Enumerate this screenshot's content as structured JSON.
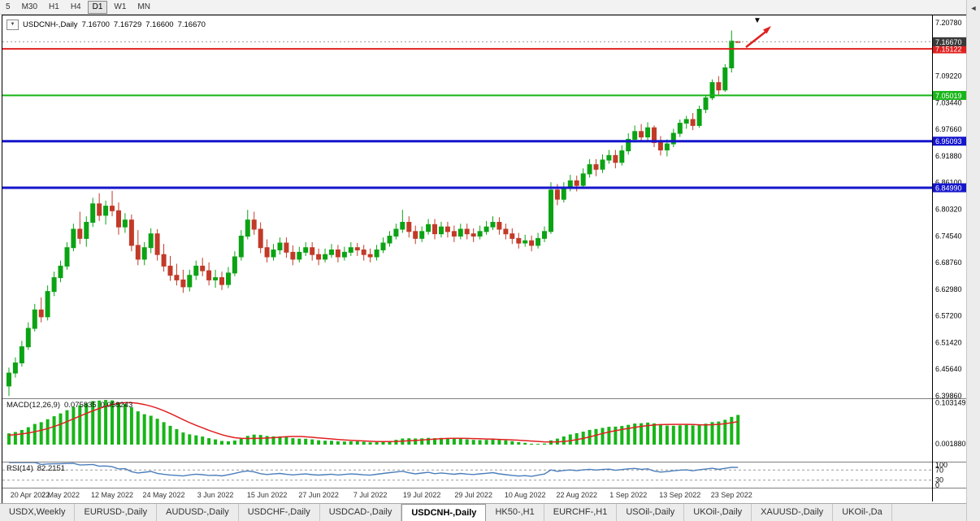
{
  "toolbar": {
    "timeframes": [
      {
        "label": "5",
        "active": false
      },
      {
        "label": "M30",
        "active": false
      },
      {
        "label": "H1",
        "active": false
      },
      {
        "label": "H4",
        "active": false
      },
      {
        "label": "D1",
        "active": true
      },
      {
        "label": "W1",
        "active": false
      },
      {
        "label": "MN",
        "active": false
      }
    ]
  },
  "chart": {
    "header": {
      "dropdown_icon": "▼",
      "symbol": "USDCNH-,Daily",
      "open": "7.16700",
      "high": "7.16729",
      "low": "7.16600",
      "close": "7.16670"
    },
    "colors": {
      "up": "#0ba314",
      "down": "#c23a28",
      "bid_line": "#9a9a9a",
      "background": "#ffffff",
      "border": "#000000"
    },
    "price_axis": {
      "labels": [
        "7.20780",
        "7.09220",
        "7.03440",
        "6.97660",
        "6.91880",
        "6.86100",
        "6.80320",
        "6.74540",
        "6.68760",
        "6.62980",
        "6.57200",
        "6.51420",
        "6.45640",
        "6.39860"
      ]
    },
    "bid_tag": {
      "label": "7.16670",
      "value": 7.1667,
      "bg": "#3a3a3a"
    },
    "hlines": [
      {
        "label": "7.15122",
        "value": 7.15122,
        "color": "#e02020",
        "width": 2
      },
      {
        "label": "7.05019",
        "value": 7.05019,
        "color": "#17b517",
        "width": 2
      },
      {
        "label": "6.95093",
        "value": 6.95093,
        "color": "#1515cc",
        "width": 3
      },
      {
        "label": "6.84990",
        "value": 6.8499,
        "color": "#1515cc",
        "width": 3
      }
    ]
  },
  "chart_data": {
    "type": "candlestick",
    "title": "USDCNH-,Daily",
    "price_range": {
      "top": 7.2237,
      "bottom": 6.3933
    },
    "x_labels": [
      {
        "bar": 0,
        "label": "20 Apr 2022"
      },
      {
        "bar": 8,
        "label": "2 May 2022"
      },
      {
        "bar": 16,
        "label": "12 May 2022"
      },
      {
        "bar": 24,
        "label": "24 May 2022"
      },
      {
        "bar": 32,
        "label": "3 Jun 2022"
      },
      {
        "bar": 40,
        "label": "15 Jun 2022"
      },
      {
        "bar": 48,
        "label": "27 Jun 2022"
      },
      {
        "bar": 56,
        "label": "7 Jul 2022"
      },
      {
        "bar": 64,
        "label": "19 Jul 2022"
      },
      {
        "bar": 72,
        "label": "29 Jul 2022"
      },
      {
        "bar": 80,
        "label": "10 Aug 2022"
      },
      {
        "bar": 88,
        "label": "22 Aug 2022"
      },
      {
        "bar": 96,
        "label": "1 Sep 2022"
      },
      {
        "bar": 104,
        "label": "13 Sep 2022"
      },
      {
        "bar": 112,
        "label": "23 Sep 2022"
      }
    ],
    "candles": [
      [
        6.42,
        6.46,
        6.398,
        6.448
      ],
      [
        6.448,
        6.482,
        6.438,
        6.47
      ],
      [
        6.47,
        6.518,
        6.462,
        6.505
      ],
      [
        6.505,
        6.558,
        6.498,
        6.545
      ],
      [
        6.545,
        6.598,
        6.538,
        6.585
      ],
      [
        6.585,
        6.612,
        6.558,
        6.57
      ],
      [
        6.57,
        6.638,
        6.562,
        6.625
      ],
      [
        6.625,
        6.668,
        6.615,
        6.655
      ],
      [
        6.655,
        6.692,
        6.645,
        6.68
      ],
      [
        6.68,
        6.732,
        6.672,
        6.72
      ],
      [
        6.72,
        6.772,
        6.712,
        6.76
      ],
      [
        6.76,
        6.798,
        6.728,
        6.74
      ],
      [
        6.74,
        6.788,
        6.722,
        6.775
      ],
      [
        6.775,
        6.828,
        6.765,
        6.815
      ],
      [
        6.815,
        6.838,
        6.778,
        6.79
      ],
      [
        6.79,
        6.822,
        6.77,
        6.81
      ],
      [
        6.81,
        6.843,
        6.788,
        6.8
      ],
      [
        6.8,
        6.818,
        6.748,
        6.765
      ],
      [
        6.765,
        6.795,
        6.752,
        6.78
      ],
      [
        6.78,
        6.792,
        6.712,
        6.725
      ],
      [
        6.725,
        6.758,
        6.682,
        6.695
      ],
      [
        6.695,
        6.732,
        6.682,
        6.72
      ],
      [
        6.72,
        6.762,
        6.708,
        6.75
      ],
      [
        6.75,
        6.76,
        6.692,
        6.705
      ],
      [
        6.705,
        6.728,
        6.668,
        6.68
      ],
      [
        6.68,
        6.702,
        6.648,
        6.66
      ],
      [
        6.66,
        6.685,
        6.638,
        6.65
      ],
      [
        6.65,
        6.672,
        6.622,
        6.635
      ],
      [
        6.635,
        6.672,
        6.625,
        6.66
      ],
      [
        6.66,
        6.692,
        6.65,
        6.68
      ],
      [
        6.68,
        6.698,
        6.658,
        6.67
      ],
      [
        6.67,
        6.688,
        6.638,
        6.65
      ],
      [
        6.65,
        6.672,
        6.633,
        6.655
      ],
      [
        6.655,
        6.668,
        6.628,
        6.64
      ],
      [
        6.64,
        6.678,
        6.632,
        6.665
      ],
      [
        6.665,
        6.712,
        6.658,
        6.7
      ],
      [
        6.7,
        6.758,
        6.692,
        6.745
      ],
      [
        6.745,
        6.802,
        6.738,
        6.78
      ],
      [
        6.78,
        6.798,
        6.748,
        6.76
      ],
      [
        6.76,
        6.775,
        6.708,
        6.72
      ],
      [
        6.72,
        6.738,
        6.688,
        6.7
      ],
      [
        6.7,
        6.728,
        6.692,
        6.715
      ],
      [
        6.715,
        6.742,
        6.705,
        6.73
      ],
      [
        6.73,
        6.742,
        6.698,
        6.71
      ],
      [
        6.71,
        6.725,
        6.682,
        6.695
      ],
      [
        6.695,
        6.722,
        6.688,
        6.71
      ],
      [
        6.71,
        6.732,
        6.702,
        6.72
      ],
      [
        6.72,
        6.732,
        6.692,
        6.705
      ],
      [
        6.705,
        6.718,
        6.682,
        6.695
      ],
      [
        6.695,
        6.718,
        6.688,
        6.705
      ],
      [
        6.705,
        6.728,
        6.698,
        6.715
      ],
      [
        6.715,
        6.726,
        6.688,
        6.7
      ],
      [
        6.7,
        6.722,
        6.692,
        6.71
      ],
      [
        6.71,
        6.732,
        6.702,
        6.72
      ],
      [
        6.72,
        6.73,
        6.702,
        6.715
      ],
      [
        6.715,
        6.726,
        6.692,
        6.705
      ],
      [
        6.705,
        6.718,
        6.688,
        6.7
      ],
      [
        6.7,
        6.726,
        6.692,
        6.715
      ],
      [
        6.715,
        6.742,
        6.708,
        6.73
      ],
      [
        6.73,
        6.756,
        6.722,
        6.745
      ],
      [
        6.745,
        6.772,
        6.738,
        6.76
      ],
      [
        6.76,
        6.802,
        6.752,
        6.775
      ],
      [
        6.775,
        6.788,
        6.742,
        6.755
      ],
      [
        6.755,
        6.768,
        6.728,
        6.74
      ],
      [
        6.74,
        6.766,
        6.732,
        6.755
      ],
      [
        6.755,
        6.782,
        6.748,
        6.77
      ],
      [
        6.77,
        6.782,
        6.738,
        6.75
      ],
      [
        6.75,
        6.776,
        6.742,
        6.765
      ],
      [
        6.765,
        6.776,
        6.742,
        6.755
      ],
      [
        6.755,
        6.768,
        6.732,
        6.745
      ],
      [
        6.745,
        6.772,
        6.738,
        6.76
      ],
      [
        6.76,
        6.772,
        6.738,
        6.75
      ],
      [
        6.75,
        6.762,
        6.732,
        6.745
      ],
      [
        6.745,
        6.768,
        6.738,
        6.755
      ],
      [
        6.755,
        6.778,
        6.748,
        6.765
      ],
      [
        6.765,
        6.788,
        6.758,
        6.775
      ],
      [
        6.775,
        6.786,
        6.748,
        6.76
      ],
      [
        6.76,
        6.772,
        6.738,
        6.75
      ],
      [
        6.75,
        6.762,
        6.728,
        6.74
      ],
      [
        6.74,
        6.752,
        6.718,
        6.73
      ],
      [
        6.73,
        6.748,
        6.722,
        6.735
      ],
      [
        6.735,
        6.746,
        6.712,
        6.725
      ],
      [
        6.725,
        6.752,
        6.718,
        6.74
      ],
      [
        6.74,
        6.766,
        6.732,
        6.755
      ],
      [
        6.755,
        6.862,
        6.75,
        6.845
      ],
      [
        6.845,
        6.858,
        6.812,
        6.825
      ],
      [
        6.825,
        6.862,
        6.818,
        6.85
      ],
      [
        6.85,
        6.878,
        6.842,
        6.865
      ],
      [
        6.865,
        6.876,
        6.842,
        6.855
      ],
      [
        6.855,
        6.892,
        6.848,
        6.88
      ],
      [
        6.88,
        6.912,
        6.872,
        6.9
      ],
      [
        6.9,
        6.912,
        6.875,
        6.89
      ],
      [
        6.89,
        6.922,
        6.882,
        6.91
      ],
      [
        6.91,
        6.932,
        6.902,
        6.92
      ],
      [
        6.92,
        6.932,
        6.892,
        6.905
      ],
      [
        6.905,
        6.942,
        6.898,
        6.93
      ],
      [
        6.93,
        6.968,
        6.922,
        6.955
      ],
      [
        6.955,
        6.985,
        6.948,
        6.972
      ],
      [
        6.972,
        6.988,
        6.95,
        6.96
      ],
      [
        6.96,
        6.992,
        6.952,
        6.98
      ],
      [
        6.98,
        6.985,
        6.938,
        6.948
      ],
      [
        6.948,
        6.962,
        6.92,
        6.932
      ],
      [
        6.932,
        6.955,
        6.918,
        6.945
      ],
      [
        6.945,
        6.978,
        6.938,
        6.968
      ],
      [
        6.968,
        6.998,
        6.96,
        6.99
      ],
      [
        6.99,
        7.006,
        6.978,
        6.998
      ],
      [
        6.998,
        7.012,
        6.975,
        6.985
      ],
      [
        6.985,
        7.028,
        6.98,
        7.02
      ],
      [
        7.02,
        7.052,
        7.012,
        7.045
      ],
      [
        7.045,
        7.085,
        7.04,
        7.078
      ],
      [
        7.078,
        7.092,
        7.052,
        7.062
      ],
      [
        7.062,
        7.118,
        7.058,
        7.11
      ],
      [
        7.11,
        7.191,
        7.1,
        7.168
      ],
      [
        7.167,
        7.16729,
        7.166,
        7.1667
      ]
    ]
  },
  "macd": {
    "name": "MACD(12,26,9)",
    "value_main": "0.075835",
    "value_signal": "0.058243",
    "axis_labels": [
      "0.103149",
      "0.001880"
    ],
    "histogram_color": "#17b517",
    "signal_color": "#e02020",
    "params": {
      "fast": 12,
      "slow": 26,
      "signal": 9
    }
  },
  "rsi": {
    "name": "RSI(14)",
    "value": "82.2151",
    "axis_labels": [
      "100",
      "70",
      "30",
      "0"
    ],
    "levels": [
      70,
      30
    ],
    "line_color": "#4a7ebb",
    "period": 14
  },
  "annotations": {
    "trend_arrow_color": "#e02020",
    "top_marker": "▼"
  },
  "tabs": {
    "items": [
      {
        "label": "USDX,Weekly",
        "active": false
      },
      {
        "label": "EURUSD-,Daily",
        "active": false
      },
      {
        "label": "AUDUSD-,Daily",
        "active": false
      },
      {
        "label": "USDCHF-,Daily",
        "active": false
      },
      {
        "label": "USDCAD-,Daily",
        "active": false
      },
      {
        "label": "USDCNH-,Daily",
        "active": true
      },
      {
        "label": "HK50-,H1",
        "active": false
      },
      {
        "label": "EURCHF-,H1",
        "active": false
      },
      {
        "label": "USOil-,Daily",
        "active": false
      },
      {
        "label": "UKOil-,Daily",
        "active": false
      },
      {
        "label": "XAUUSD-,Daily",
        "active": false
      },
      {
        "label": "UKOil-,Da",
        "active": false
      }
    ],
    "scroll_left_icon": "◄"
  }
}
